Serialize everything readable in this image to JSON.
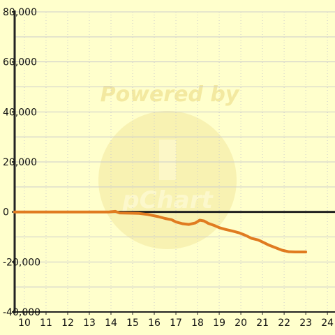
{
  "chart_data": {
    "type": "line",
    "title": "",
    "xlabel": "",
    "ylabel": "",
    "xlim": [
      9.55,
      24.35
    ],
    "ylim": [
      -40000,
      80000
    ],
    "x_ticks": [
      "10",
      "11",
      "12",
      "13",
      "14",
      "15",
      "16",
      "17",
      "18",
      "19",
      "20",
      "21",
      "22",
      "23",
      "24"
    ],
    "y_ticks": [
      "80,000",
      "60,000",
      "40,000",
      "20,000",
      "0",
      "-20,000",
      "-40,000"
    ],
    "grid": true,
    "legend": "none",
    "watermark": "Powered by",
    "watermark_logo": "pChart",
    "colors": {
      "background": "#ffffcc",
      "grid": "#cccccc",
      "axis": "#222222",
      "series": "#e07b20",
      "watermark": "#f3e9a0"
    },
    "series": [
      {
        "values_x": [
          9.55,
          10,
          11,
          12,
          13,
          13.9,
          14.2,
          14.4,
          15,
          15.3,
          15.7,
          16.2,
          16.5,
          16.8,
          17,
          17.3,
          17.6,
          17.9,
          18.1,
          18.3,
          18.5,
          18.8,
          19,
          19.3,
          19.6,
          19.9,
          20.2,
          20.5,
          20.8,
          21,
          21.3,
          21.6,
          21.9,
          22.2,
          22.5,
          22.8,
          23
        ],
        "values_y": [
          0,
          0,
          0,
          0,
          0,
          0,
          200,
          -400,
          -500,
          -600,
          -1000,
          -1900,
          -2600,
          -3100,
          -4000,
          -4700,
          -5000,
          -4400,
          -3300,
          -3600,
          -4600,
          -5500,
          -6300,
          -7000,
          -7600,
          -8300,
          -9300,
          -10600,
          -11200,
          -12000,
          -13300,
          -14300,
          -15300,
          -15900,
          -16000,
          -16000,
          -16000
        ]
      }
    ]
  }
}
